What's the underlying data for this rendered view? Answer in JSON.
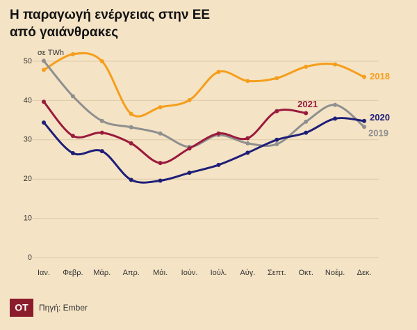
{
  "chart_data": {
    "type": "line",
    "title": [
      "Η παραγωγή ενέργειας στην ΕΕ",
      "από γαιάνθρακες"
    ],
    "unit_label": "σε TWh",
    "source": "Πηγή: Ember",
    "logo": "OT",
    "categories": [
      "Ιαν.",
      "Φεβρ.",
      "Μάρ.",
      "Απρ.",
      "Μάι.",
      "Ιούν.",
      "Ιούλ.",
      "Αύγ.",
      "Σεπτ.",
      "Οκτ.",
      "Νοέμ.",
      "Δεκ."
    ],
    "series": [
      {
        "name": "2018",
        "color": "#f59e1b",
        "values": [
          47.8,
          51.8,
          50.0,
          36.6,
          38.3,
          40.1,
          47.3,
          45.0,
          45.7,
          48.6,
          49.2,
          46.0
        ]
      },
      {
        "name": "2019",
        "color": "#8f8f8f",
        "values": [
          50.1,
          41.1,
          34.8,
          33.2,
          31.6,
          28.2,
          31.2,
          29.1,
          28.9,
          34.6,
          38.9,
          33.3
        ]
      },
      {
        "name": "2020",
        "color": "#1e1e78",
        "values": [
          34.4,
          26.6,
          27.1,
          19.8,
          19.6,
          21.6,
          23.6,
          26.7,
          30.0,
          31.8,
          35.4,
          34.8
        ]
      },
      {
        "name": "2021",
        "color": "#9a1a3c",
        "values": [
          39.7,
          31.0,
          31.8,
          29.1,
          24.1,
          27.8,
          31.6,
          30.4,
          37.3,
          36.8,
          null,
          null
        ]
      }
    ],
    "ylim": [
      0,
      50
    ],
    "yticks": [
      0,
      10,
      20,
      30,
      40,
      50
    ],
    "grid": true
  }
}
